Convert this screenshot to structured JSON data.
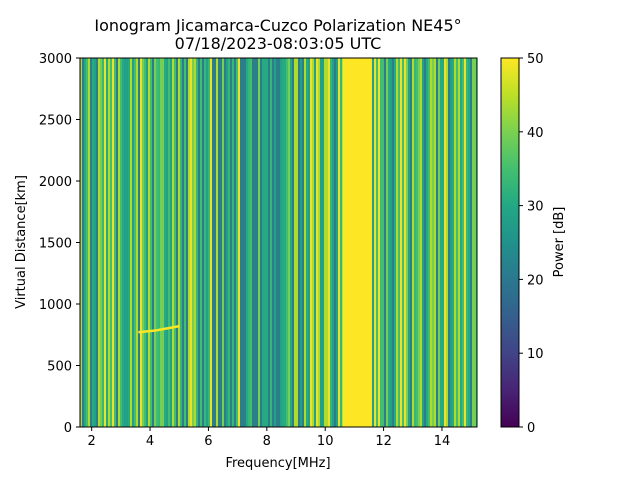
{
  "chart_data": {
    "type": "heatmap",
    "title_line1": "Ionogram Jicamarca-Cuzco Polarization NE45°",
    "title_line2": "07/18/2023-08:03:05 UTC",
    "xlabel": "Frequency[MHz]",
    "ylabel": "Virtual Distance[km]",
    "xlim": [
      1.6,
      15.2
    ],
    "ylim": [
      0,
      3000
    ],
    "x_ticks": [
      2,
      4,
      6,
      8,
      10,
      12,
      14
    ],
    "y_ticks": [
      0,
      500,
      1000,
      1500,
      2000,
      2500,
      3000
    ],
    "colorbar": {
      "label": "Power [dB]",
      "range": [
        0,
        50
      ],
      "ticks": [
        0,
        10,
        20,
        30,
        40,
        50
      ],
      "colormap": "viridis"
    },
    "saturated_band_mhz": [
      10.6,
      11.6
    ],
    "trace": {
      "x_mhz": [
        3.6,
        4.2,
        5.0
      ],
      "y_km": [
        770,
        785,
        820
      ]
    }
  }
}
